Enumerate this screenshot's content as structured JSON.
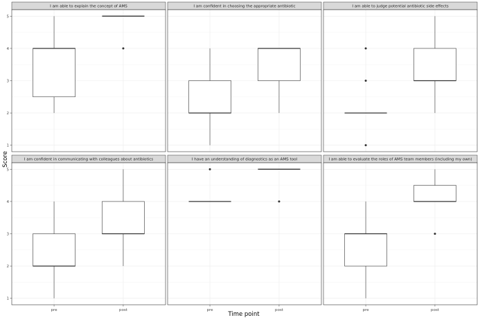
{
  "chart_data": {
    "type": "boxplot",
    "xlabel": "Time point",
    "ylabel": "Score",
    "categories": [
      "pre",
      "post"
    ],
    "ylim": [
      0.8,
      5.2
    ],
    "yticks": [
      1,
      2,
      3,
      4,
      5
    ],
    "grid": true,
    "colors": {
      "strip": "#d9d9d9",
      "panel_border": "#333333",
      "grid": "#ebebeb",
      "box_fill": "#ffffff",
      "box_line": "#333333"
    },
    "panels": [
      {
        "title": "I am able to explain the concept of AMS",
        "boxes": [
          {
            "group": "pre",
            "lower": 2,
            "q1": 2.5,
            "median": 4,
            "q3": 4,
            "upper": 5,
            "outliers": []
          },
          {
            "group": "post",
            "lower": 5,
            "q1": 5,
            "median": 5,
            "q3": 5,
            "upper": 5,
            "outliers": [
              4
            ]
          }
        ]
      },
      {
        "title": "I am confident in choosing the appropriate antibiotic",
        "boxes": [
          {
            "group": "pre",
            "lower": 1,
            "q1": 2,
            "median": 2,
            "q3": 3,
            "upper": 4,
            "outliers": []
          },
          {
            "group": "post",
            "lower": 2,
            "q1": 3,
            "median": 4,
            "q3": 4,
            "upper": 4,
            "outliers": []
          }
        ]
      },
      {
        "title": "I am able to judge potential antibiotic side effects",
        "boxes": [
          {
            "group": "pre",
            "lower": 2,
            "q1": 2,
            "median": 2,
            "q3": 2,
            "upper": 2,
            "outliers": [
              1,
              3,
              4
            ]
          },
          {
            "group": "post",
            "lower": 2,
            "q1": 3,
            "median": 3,
            "q3": 4,
            "upper": 5,
            "outliers": []
          }
        ]
      },
      {
        "title": "I am confident in communicating with colleagues about antibiotics",
        "boxes": [
          {
            "group": "pre",
            "lower": 1,
            "q1": 2,
            "median": 2,
            "q3": 3,
            "upper": 4,
            "outliers": []
          },
          {
            "group": "post",
            "lower": 2,
            "q1": 3,
            "median": 3,
            "q3": 4,
            "upper": 5,
            "outliers": []
          }
        ]
      },
      {
        "title": "I have an understanding of diagnostics as an AMS tool",
        "boxes": [
          {
            "group": "pre",
            "lower": 4,
            "q1": 4,
            "median": 4,
            "q3": 4,
            "upper": 4,
            "outliers": [
              5
            ]
          },
          {
            "group": "post",
            "lower": 5,
            "q1": 5,
            "median": 5,
            "q3": 5,
            "upper": 5,
            "outliers": [
              4
            ]
          }
        ]
      },
      {
        "title": "I am able to evaluate the roles of AMS team members (including my own)",
        "boxes": [
          {
            "group": "pre",
            "lower": 1,
            "q1": 2,
            "median": 3,
            "q3": 3,
            "upper": 4,
            "outliers": []
          },
          {
            "group": "post",
            "lower": 4,
            "q1": 4,
            "median": 4,
            "q3": 4.5,
            "upper": 5,
            "outliers": [
              3
            ]
          }
        ]
      }
    ]
  }
}
